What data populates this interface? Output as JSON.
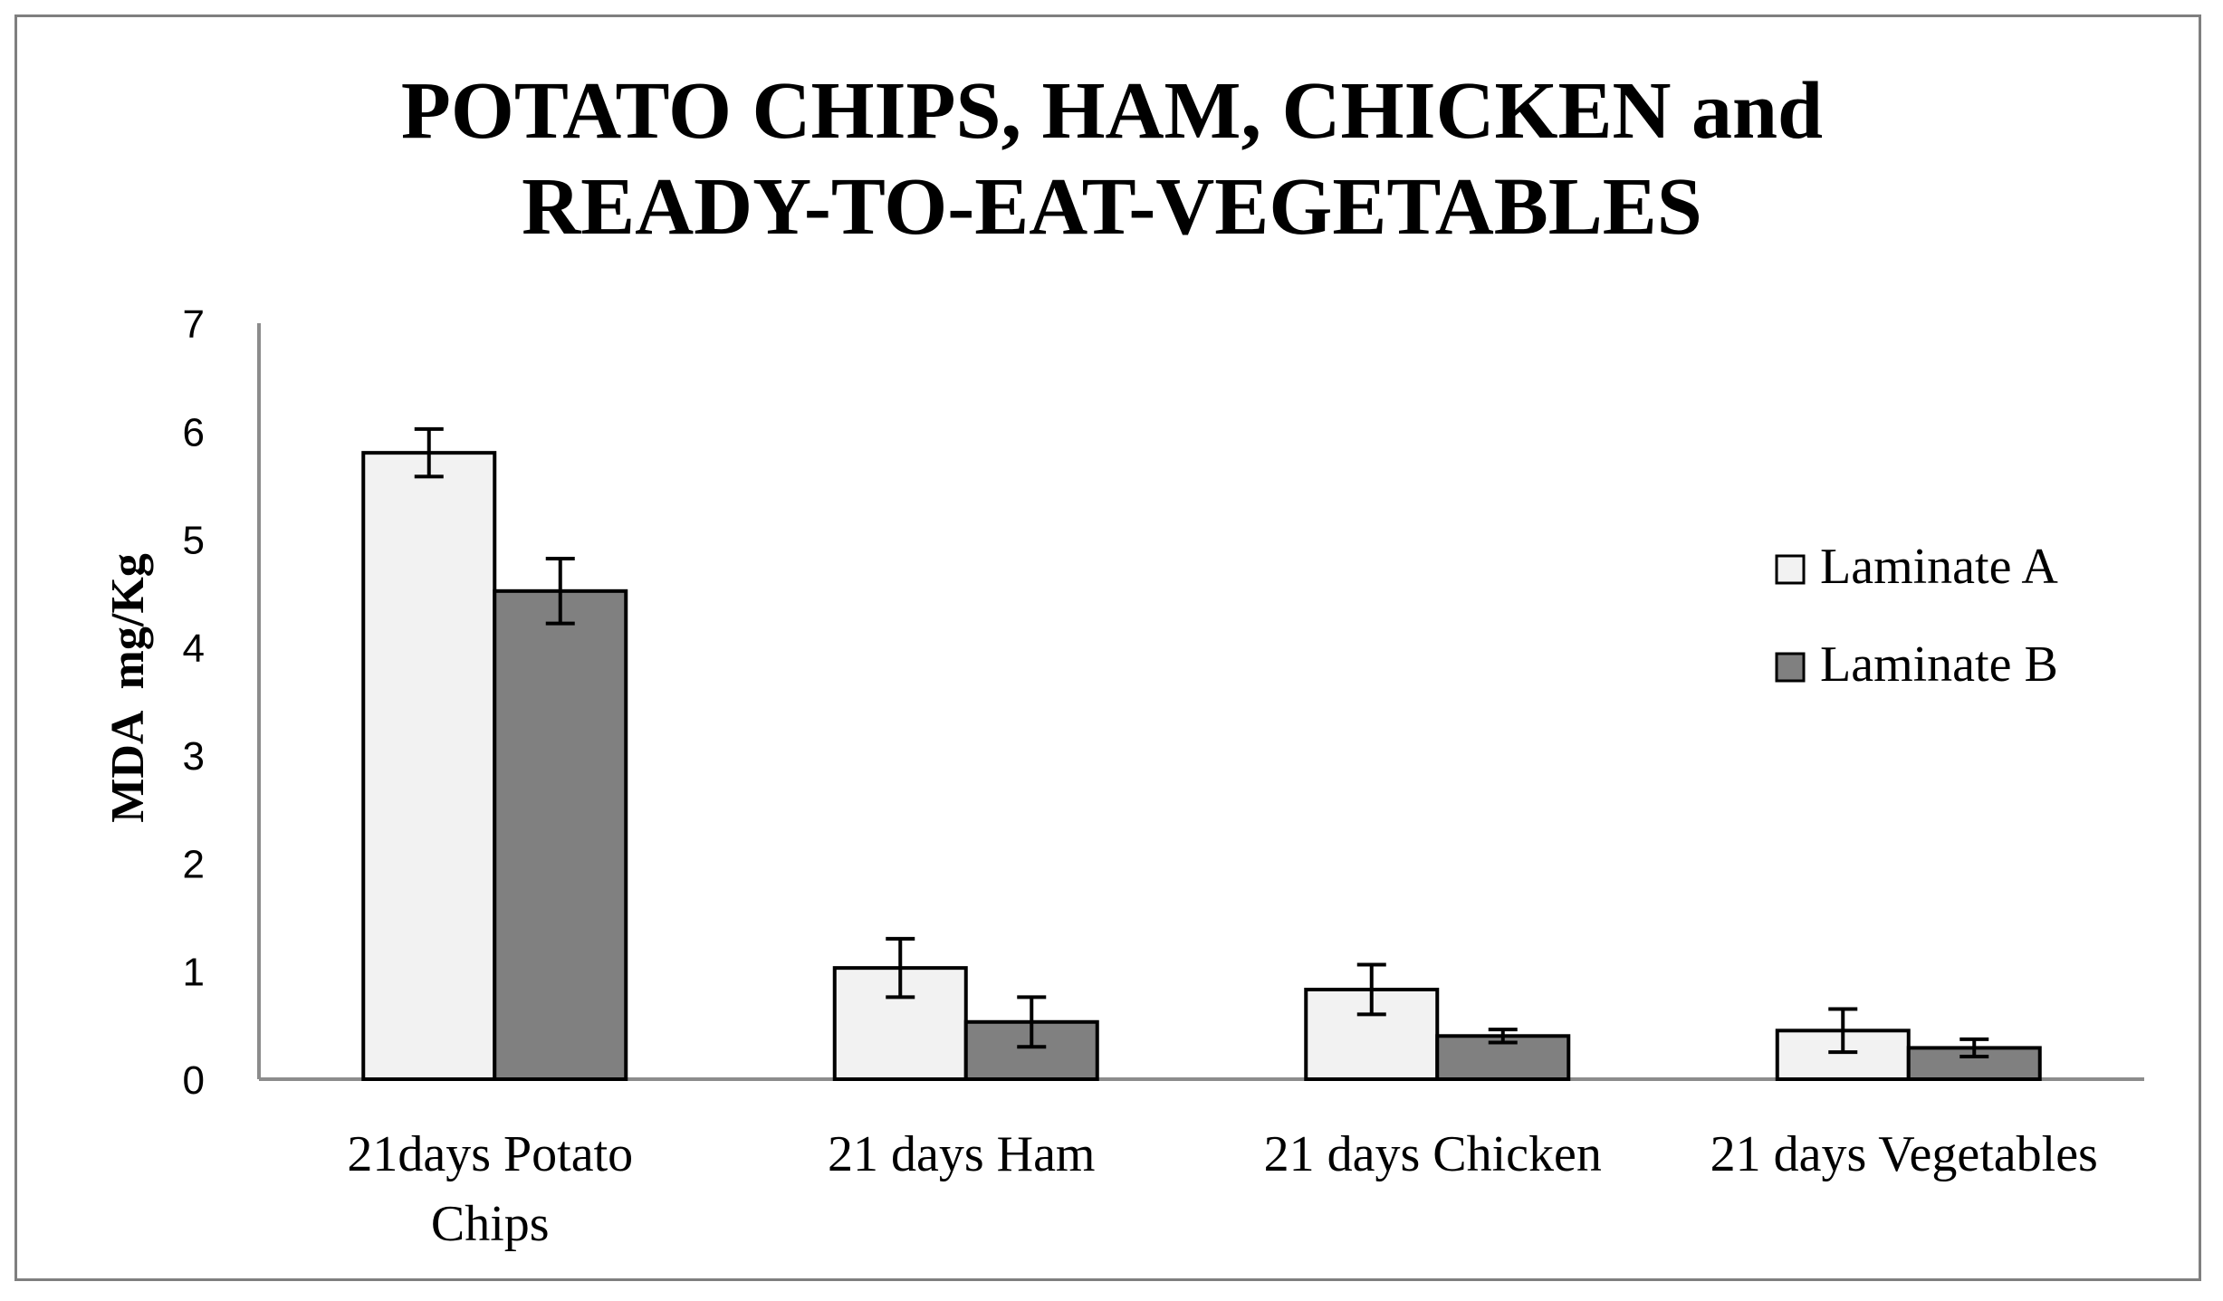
{
  "chart_data": {
    "type": "bar",
    "title": [
      "POTATO CHIPS, HAM, CHICKEN and",
      "READY-TO-EAT-VEGETABLES"
    ],
    "xlabel": "",
    "ylabel": "MDA  mg/Kg",
    "ylim": [
      0,
      7
    ],
    "yticks": [
      "0",
      "1",
      "2",
      "3",
      "4",
      "5",
      "6",
      "7"
    ],
    "grid": false,
    "legend_position": "right",
    "categories": [
      [
        "21days Potato",
        "Chips"
      ],
      [
        "21 days Ham"
      ],
      [
        "21 days Chicken"
      ],
      [
        "21 days Vegetables"
      ]
    ],
    "series": [
      {
        "name": "Laminate A",
        "color": "#f2f2f2",
        "values": [
          5.8,
          1.03,
          0.83,
          0.45
        ],
        "errors": [
          0.22,
          0.27,
          0.23,
          0.2
        ]
      },
      {
        "name": "Laminate B",
        "color": "#808080",
        "values": [
          4.52,
          0.53,
          0.4,
          0.29
        ],
        "errors": [
          0.3,
          0.23,
          0.06,
          0.08
        ]
      }
    ]
  }
}
